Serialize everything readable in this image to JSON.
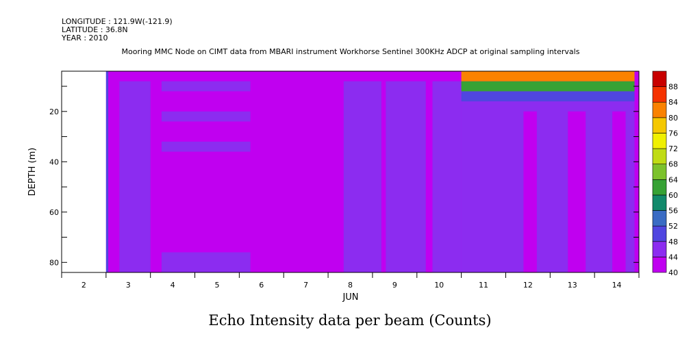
{
  "header": {
    "longitude": "LONGITUDE : 121.9W(-121.9)",
    "latitude": "LATITUDE : 36.8N",
    "year": "YEAR : 2010",
    "title": "Mooring MMC Node on CIMT data from MBARI instrument Workhorse Sentinel 300KHz ADCP at original sampling intervals"
  },
  "caption": "Echo Intensity data per beam (Counts)",
  "colors": {
    "c40": "#c000f0",
    "c44": "#8c2cf0",
    "c48": "#5046e0",
    "c52": "#3a6cc4",
    "c56": "#128a6c",
    "c60": "#37a235",
    "c64": "#7cc22c",
    "c68": "#c0dc14",
    "c72": "#f0f000",
    "c76": "#f5c800",
    "c80": "#fa8200",
    "c84": "#f53200",
    "c88": "#c80000",
    "c92": "#a00000",
    "frame": "#000000"
  },
  "chart_data": {
    "type": "heatmap",
    "title": "Mooring MMC Node on CIMT data from MBARI instrument Workhorse Sentinel 300KHz ADCP at original sampling intervals",
    "xlabel": "JUN",
    "ylabel": "DEPTH (m)",
    "xlim": [
      1.5,
      14.5
    ],
    "ylim": [
      84,
      4
    ],
    "x_ticks": [
      "2",
      "3",
      "4",
      "5",
      "6",
      "7",
      "8",
      "9",
      "10",
      "11",
      "12",
      "13",
      "14"
    ],
    "y_ticks": [
      "20",
      "40",
      "60",
      "80"
    ],
    "colorbar": {
      "label": "Counts",
      "range": [
        40,
        92
      ],
      "levels": [
        40,
        44,
        48,
        52,
        56,
        60,
        64,
        68,
        72,
        76,
        80,
        84,
        88,
        92
      ],
      "tick_labels": [
        "40",
        "44",
        "48",
        "52",
        "56",
        "60",
        "64",
        "68",
        "72",
        "76",
        "80",
        "84",
        "88"
      ]
    },
    "background_value": 42,
    "no_data_before_day": 2.5,
    "regions": [
      {
        "x": [
          2.5,
          2.55
        ],
        "depth": [
          4,
          84
        ],
        "value": 48
      },
      {
        "x": [
          2.8,
          3.5
        ],
        "depth": [
          8,
          84
        ],
        "value": 46
      },
      {
        "x": [
          3.75,
          5.75
        ],
        "depth": [
          8,
          12
        ],
        "value": 46
      },
      {
        "x": [
          3.75,
          5.75
        ],
        "depth": [
          20,
          24
        ],
        "value": 46
      },
      {
        "x": [
          3.75,
          5.75
        ],
        "depth": [
          32,
          36
        ],
        "value": 46
      },
      {
        "x": [
          3.75,
          5.75
        ],
        "depth": [
          76,
          84
        ],
        "value": 46
      },
      {
        "x": [
          7.85,
          8.7
        ],
        "depth": [
          8,
          84
        ],
        "value": 46
      },
      {
        "x": [
          8.8,
          9.7
        ],
        "depth": [
          8,
          84
        ],
        "value": 46
      },
      {
        "x": [
          9.85,
          10.5
        ],
        "depth": [
          8,
          84
        ],
        "value": 46
      },
      {
        "x": [
          10.5,
          14.4
        ],
        "depth": [
          12,
          84
        ],
        "value": 46
      },
      {
        "x": [
          10.5,
          14.4
        ],
        "depth": [
          12,
          16
        ],
        "value": 50
      },
      {
        "x": [
          11.1,
          11.5
        ],
        "depth": [
          16,
          84
        ],
        "value": 44
      },
      {
        "x": [
          11.9,
          12.2
        ],
        "depth": [
          20,
          84
        ],
        "value": 42
      },
      {
        "x": [
          12.9,
          13.3
        ],
        "depth": [
          20,
          84
        ],
        "value": 42
      },
      {
        "x": [
          13.9,
          14.2
        ],
        "depth": [
          20,
          84
        ],
        "value": 42
      },
      {
        "x": [
          10.5,
          14.4
        ],
        "depth": [
          8,
          12
        ],
        "value": 61
      },
      {
        "x": [
          10.5,
          14.4
        ],
        "depth": [
          4,
          8
        ],
        "value": 81
      }
    ]
  }
}
